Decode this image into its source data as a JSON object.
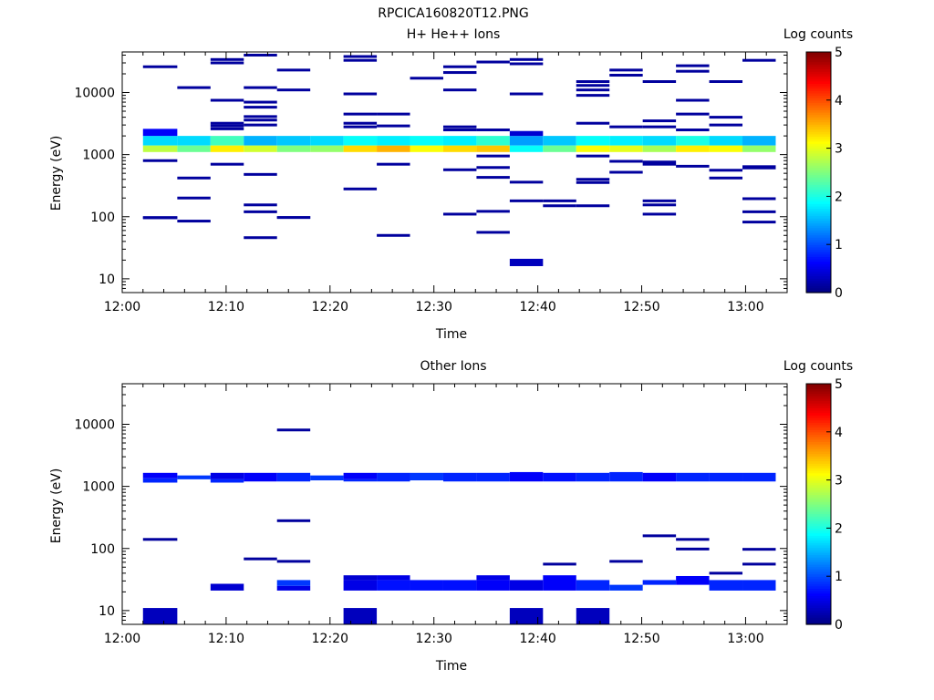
{
  "page_title": "RPCICA160820T12.PNG",
  "chart_data": [
    {
      "type": "heatmap",
      "title": "H+ He++ Ions",
      "xlabel": "Time",
      "ylabel": "Energy (eV)",
      "x_ticks": [
        "12:00",
        "12:10",
        "12:20",
        "12:30",
        "12:40",
        "12:50",
        "13:00"
      ],
      "x_range_minutes": [
        0,
        64
      ],
      "y_scale": "log",
      "y_ticks": [
        "10",
        "100",
        "1000",
        "10000"
      ],
      "y_range": [
        6,
        45000
      ],
      "colorbar": {
        "label": "Log counts",
        "range": [
          0,
          5
        ],
        "ticks": [
          "0",
          "1",
          "2",
          "3",
          "4",
          "5"
        ]
      },
      "cells": [
        [
          2.0,
          5.3,
          1400,
          2000,
          1.7
        ],
        [
          2.0,
          5.3,
          1100,
          1400,
          2.8
        ],
        [
          2.0,
          5.3,
          2000,
          2600,
          0.6
        ],
        [
          5.3,
          8.5,
          1400,
          2000,
          1.7
        ],
        [
          5.3,
          8.5,
          1100,
          1400,
          2.4
        ],
        [
          8.5,
          11.7,
          1400,
          2000,
          2.2
        ],
        [
          8.5,
          11.7,
          1100,
          1400,
          3.2
        ],
        [
          11.7,
          14.9,
          1400,
          2000,
          1.5
        ],
        [
          11.7,
          14.9,
          1100,
          1400,
          2.9
        ],
        [
          14.9,
          18.1,
          1400,
          2000,
          1.6
        ],
        [
          14.9,
          18.1,
          1100,
          1400,
          2.5
        ],
        [
          18.1,
          21.3,
          1400,
          2000,
          1.7
        ],
        [
          18.1,
          21.3,
          1100,
          1400,
          2.6
        ],
        [
          21.3,
          24.5,
          1400,
          2000,
          1.9
        ],
        [
          21.3,
          24.5,
          1100,
          1400,
          3.3
        ],
        [
          24.5,
          27.7,
          1400,
          2000,
          1.8
        ],
        [
          24.5,
          27.7,
          1100,
          1400,
          3.5
        ],
        [
          27.7,
          30.9,
          1400,
          2000,
          1.9
        ],
        [
          27.7,
          30.9,
          1100,
          1400,
          3.1
        ],
        [
          30.9,
          34.1,
          1400,
          2000,
          1.8
        ],
        [
          30.9,
          34.1,
          1100,
          1400,
          3.3
        ],
        [
          34.1,
          37.3,
          1400,
          2000,
          2.1
        ],
        [
          34.1,
          37.3,
          1100,
          1400,
          3.4
        ],
        [
          37.3,
          40.5,
          1400,
          2000,
          1.4
        ],
        [
          37.3,
          40.5,
          1100,
          1400,
          1.9
        ],
        [
          37.3,
          40.5,
          2000,
          2400,
          0.4
        ],
        [
          40.5,
          43.7,
          1400,
          2000,
          1.6
        ],
        [
          40.5,
          43.7,
          1100,
          1400,
          2.4
        ],
        [
          43.7,
          46.9,
          1400,
          2000,
          1.9
        ],
        [
          43.7,
          46.9,
          1100,
          1400,
          3.1
        ],
        [
          46.9,
          50.1,
          1400,
          2000,
          1.8
        ],
        [
          46.9,
          50.1,
          1100,
          1400,
          3.0
        ],
        [
          50.1,
          53.3,
          1400,
          2000,
          1.7
        ],
        [
          50.1,
          53.3,
          1100,
          1400,
          2.7
        ],
        [
          53.3,
          56.5,
          1400,
          2000,
          2.0
        ],
        [
          53.3,
          56.5,
          1100,
          1400,
          3.2
        ],
        [
          56.5,
          59.7,
          1400,
          2000,
          1.7
        ],
        [
          56.5,
          59.7,
          1100,
          1400,
          3.1
        ],
        [
          59.7,
          62.9,
          1400,
          2000,
          1.5
        ],
        [
          59.7,
          62.9,
          1100,
          1400,
          2.6
        ],
        [
          37.3,
          40.5,
          16,
          21,
          0.3
        ],
        [
          2.0,
          5.3,
          93,
          102,
          0.2
        ],
        [
          14.9,
          18.1,
          93,
          102,
          0.2
        ]
      ],
      "lines": [
        [
          2.0,
          5.3,
          26000
        ],
        [
          2.0,
          5.3,
          800
        ],
        [
          2.0,
          5.3,
          96
        ],
        [
          5.3,
          8.5,
          12000
        ],
        [
          5.3,
          8.5,
          420
        ],
        [
          5.3,
          8.5,
          200
        ],
        [
          5.3,
          8.5,
          85
        ],
        [
          8.5,
          11.7,
          34000
        ],
        [
          8.5,
          11.7,
          30000
        ],
        [
          8.5,
          11.7,
          7500
        ],
        [
          8.5,
          11.7,
          3200
        ],
        [
          8.5,
          11.7,
          2900
        ],
        [
          8.5,
          11.7,
          2600
        ],
        [
          8.5,
          11.7,
          700
        ],
        [
          11.7,
          14.9,
          40000
        ],
        [
          11.7,
          14.9,
          12000
        ],
        [
          11.7,
          14.9,
          7000
        ],
        [
          11.7,
          14.9,
          5800
        ],
        [
          11.7,
          14.9,
          4100
        ],
        [
          11.7,
          14.9,
          3600
        ],
        [
          11.7,
          14.9,
          3000
        ],
        [
          11.7,
          14.9,
          480
        ],
        [
          11.7,
          14.9,
          155
        ],
        [
          11.7,
          14.9,
          120
        ],
        [
          11.7,
          14.9,
          46
        ],
        [
          14.9,
          18.1,
          23000
        ],
        [
          14.9,
          18.1,
          11000
        ],
        [
          14.9,
          18.1,
          97
        ],
        [
          21.3,
          24.5,
          38000
        ],
        [
          21.3,
          24.5,
          33000
        ],
        [
          21.3,
          24.5,
          9500
        ],
        [
          21.3,
          24.5,
          4500
        ],
        [
          21.3,
          24.5,
          3200
        ],
        [
          21.3,
          24.5,
          2800
        ],
        [
          21.3,
          24.5,
          280
        ],
        [
          24.5,
          27.7,
          4500
        ],
        [
          24.5,
          27.7,
          2900
        ],
        [
          24.5,
          27.7,
          700
        ],
        [
          24.5,
          27.7,
          50
        ],
        [
          27.7,
          30.9,
          17000
        ],
        [
          30.9,
          34.1,
          26000
        ],
        [
          30.9,
          34.1,
          21000
        ],
        [
          30.9,
          34.1,
          11000
        ],
        [
          30.9,
          34.1,
          2800
        ],
        [
          30.9,
          34.1,
          2500
        ],
        [
          30.9,
          34.1,
          570
        ],
        [
          30.9,
          34.1,
          110
        ],
        [
          34.1,
          37.3,
          31000
        ],
        [
          34.1,
          37.3,
          2500
        ],
        [
          34.1,
          37.3,
          950
        ],
        [
          34.1,
          37.3,
          620
        ],
        [
          34.1,
          37.3,
          430
        ],
        [
          34.1,
          37.3,
          122
        ],
        [
          34.1,
          37.3,
          56
        ],
        [
          37.3,
          40.5,
          34000
        ],
        [
          37.3,
          40.5,
          29000
        ],
        [
          37.3,
          40.5,
          9500
        ],
        [
          37.3,
          40.5,
          360
        ],
        [
          37.3,
          40.5,
          180
        ],
        [
          40.5,
          43.7,
          180
        ],
        [
          40.5,
          43.7,
          150
        ],
        [
          43.7,
          46.9,
          15000
        ],
        [
          43.7,
          46.9,
          13000
        ],
        [
          43.7,
          46.9,
          11000
        ],
        [
          43.7,
          46.9,
          9000
        ],
        [
          43.7,
          46.9,
          3200
        ],
        [
          43.7,
          46.9,
          950
        ],
        [
          43.7,
          46.9,
          400
        ],
        [
          43.7,
          46.9,
          355
        ],
        [
          43.7,
          46.9,
          150
        ],
        [
          46.9,
          50.1,
          23000
        ],
        [
          46.9,
          50.1,
          19000
        ],
        [
          46.9,
          50.1,
          2800
        ],
        [
          46.9,
          50.1,
          780
        ],
        [
          46.9,
          50.1,
          520
        ],
        [
          50.1,
          53.3,
          15000
        ],
        [
          50.1,
          53.3,
          3500
        ],
        [
          50.1,
          53.3,
          2800
        ],
        [
          50.1,
          53.3,
          760
        ],
        [
          50.1,
          53.3,
          700
        ],
        [
          50.1,
          53.3,
          180
        ],
        [
          50.1,
          53.3,
          155
        ],
        [
          50.1,
          53.3,
          110
        ],
        [
          53.3,
          56.5,
          27000
        ],
        [
          53.3,
          56.5,
          22000
        ],
        [
          53.3,
          56.5,
          7500
        ],
        [
          53.3,
          56.5,
          4500
        ],
        [
          53.3,
          56.5,
          2500
        ],
        [
          53.3,
          56.5,
          650
        ],
        [
          56.5,
          59.7,
          15000
        ],
        [
          56.5,
          59.7,
          4000
        ],
        [
          56.5,
          59.7,
          3000
        ],
        [
          56.5,
          59.7,
          560
        ],
        [
          56.5,
          59.7,
          420
        ],
        [
          59.7,
          62.9,
          33000
        ],
        [
          59.7,
          62.9,
          640
        ],
        [
          59.7,
          62.9,
          610
        ],
        [
          59.7,
          62.9,
          195
        ],
        [
          59.7,
          62.9,
          120
        ],
        [
          59.7,
          62.9,
          82
        ]
      ]
    },
    {
      "type": "heatmap",
      "title": "Other Ions",
      "xlabel": "Time",
      "ylabel": "Energy (eV)",
      "x_ticks": [
        "12:00",
        "12:10",
        "12:20",
        "12:30",
        "12:40",
        "12:50",
        "13:00"
      ],
      "x_range_minutes": [
        0,
        64
      ],
      "y_scale": "log",
      "y_ticks": [
        "10",
        "100",
        "1000",
        "10000"
      ],
      "y_range": [
        6,
        45000
      ],
      "colorbar": {
        "label": "Log counts",
        "range": [
          0,
          5
        ],
        "ticks": [
          "0",
          "1",
          "2",
          "3",
          "4",
          "5"
        ]
      },
      "cells": [
        [
          2.0,
          5.3,
          1350,
          1650,
          0.6
        ],
        [
          2.0,
          5.3,
          1150,
          1350,
          0.8
        ],
        [
          5.3,
          8.5,
          1300,
          1500,
          0.9
        ],
        [
          8.5,
          11.7,
          1300,
          1650,
          0.5
        ],
        [
          8.5,
          11.7,
          1150,
          1300,
          0.8
        ],
        [
          11.7,
          14.9,
          1200,
          1650,
          0.6
        ],
        [
          14.9,
          18.1,
          1200,
          1650,
          0.8
        ],
        [
          18.1,
          21.3,
          1250,
          1500,
          0.9
        ],
        [
          21.3,
          24.5,
          1300,
          1650,
          0.6
        ],
        [
          21.3,
          24.5,
          1200,
          1300,
          0.8
        ],
        [
          24.5,
          27.7,
          1200,
          1650,
          0.8
        ],
        [
          27.7,
          30.9,
          1250,
          1650,
          0.9
        ],
        [
          30.9,
          34.1,
          1200,
          1650,
          0.8
        ],
        [
          34.1,
          37.3,
          1200,
          1650,
          0.8
        ],
        [
          37.3,
          40.5,
          1200,
          1700,
          0.6
        ],
        [
          40.5,
          43.7,
          1200,
          1650,
          0.7
        ],
        [
          43.7,
          46.9,
          1200,
          1650,
          0.8
        ],
        [
          46.9,
          50.1,
          1200,
          1700,
          0.8
        ],
        [
          50.1,
          53.3,
          1200,
          1650,
          0.6
        ],
        [
          53.3,
          56.5,
          1200,
          1650,
          0.8
        ],
        [
          56.5,
          59.7,
          1200,
          1650,
          0.8
        ],
        [
          59.7,
          62.9,
          1200,
          1650,
          0.8
        ],
        [
          2.0,
          5.3,
          6,
          11,
          0.3
        ],
        [
          21.3,
          24.5,
          6,
          11,
          0.3
        ],
        [
          37.3,
          40.5,
          6,
          11,
          0.3
        ],
        [
          43.7,
          46.9,
          6,
          11,
          0.3
        ],
        [
          8.5,
          11.7,
          21,
          27,
          0.4
        ],
        [
          14.9,
          18.1,
          21,
          25,
          0.5
        ],
        [
          14.9,
          18.1,
          25,
          31,
          0.9
        ],
        [
          21.3,
          24.5,
          21,
          31,
          0.5
        ],
        [
          21.3,
          24.5,
          31,
          37,
          0.4
        ],
        [
          24.5,
          27.7,
          21,
          31,
          0.7
        ],
        [
          24.5,
          27.7,
          31,
          37,
          0.5
        ],
        [
          27.7,
          30.9,
          21,
          31,
          0.7
        ],
        [
          30.9,
          34.1,
          21,
          31,
          0.7
        ],
        [
          34.1,
          37.3,
          21,
          31,
          0.6
        ],
        [
          34.1,
          37.3,
          31,
          37,
          0.5
        ],
        [
          37.3,
          40.5,
          21,
          31,
          0.5
        ],
        [
          40.5,
          43.7,
          21,
          37,
          0.6
        ],
        [
          43.7,
          46.9,
          21,
          31,
          0.8
        ],
        [
          46.9,
          50.1,
          21,
          26,
          0.9
        ],
        [
          50.1,
          53.3,
          26,
          31,
          0.8
        ],
        [
          53.3,
          56.5,
          26,
          36,
          0.6
        ],
        [
          56.5,
          59.7,
          21,
          31,
          0.8
        ],
        [
          59.7,
          62.9,
          21,
          31,
          0.8
        ]
      ],
      "lines": [
        [
          2.0,
          5.3,
          140
        ],
        [
          11.7,
          14.9,
          68
        ],
        [
          14.9,
          18.1,
          8100
        ],
        [
          14.9,
          18.1,
          280
        ],
        [
          14.9,
          18.1,
          62
        ],
        [
          40.5,
          43.7,
          56
        ],
        [
          46.9,
          50.1,
          62
        ],
        [
          50.1,
          53.3,
          160
        ],
        [
          53.3,
          56.5,
          140
        ],
        [
          53.3,
          56.5,
          98
        ],
        [
          56.5,
          59.7,
          40
        ],
        [
          59.7,
          62.9,
          97
        ],
        [
          59.7,
          62.9,
          56
        ]
      ]
    }
  ]
}
